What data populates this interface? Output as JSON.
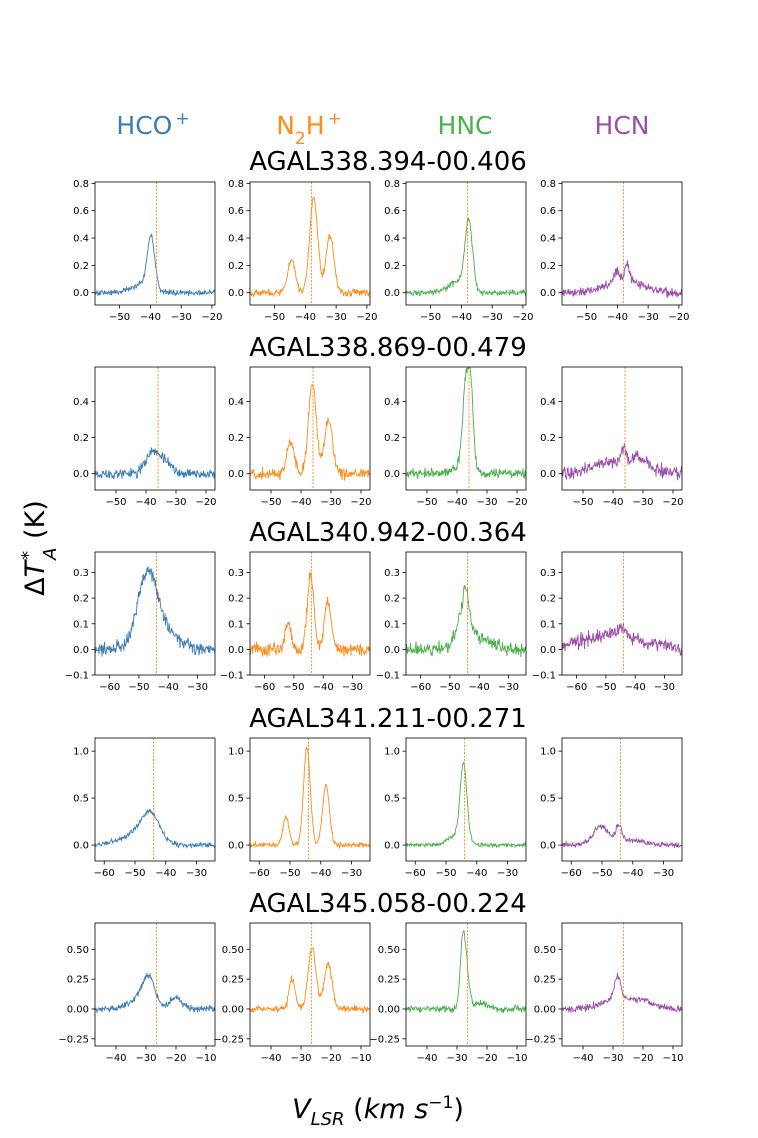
{
  "figure": {
    "column_labels": [
      {
        "parts": [
          {
            "t": "HCO"
          },
          {
            "t": "+",
            "sup": true
          }
        ],
        "color": "#3b7db5"
      },
      {
        "parts": [
          {
            "t": "N"
          },
          {
            "t": "2",
            "sub": true
          },
          {
            "t": "H"
          },
          {
            "t": "+",
            "sup": true
          }
        ],
        "color": "#ff8c1a"
      },
      {
        "parts": [
          {
            "t": "HNC"
          }
        ],
        "color": "#4cb04c"
      },
      {
        "parts": [
          {
            "t": "HCN"
          }
        ],
        "color": "#9b4fa8"
      }
    ],
    "y_label": {
      "prefix": "Δ",
      "var": "T",
      "sup": "*",
      "sub": "A",
      "unit": " (K)"
    },
    "x_label": {
      "var": "V",
      "sub": "LSR",
      "unit_pre": " (",
      "unit_var": "km s",
      "unit_sup": "−1",
      "unit_post": ")"
    }
  },
  "chart_data": [
    {
      "type": "line",
      "source": "AGAL338.394-00.406",
      "xlim": [
        -58,
        -19
      ],
      "ylim": [
        -0.09,
        0.81
      ],
      "xticks": [
        -50,
        -40,
        -30,
        -20
      ],
      "yticks": [
        0.0,
        0.2,
        0.4,
        0.6,
        0.8
      ],
      "ytick_labels": [
        "0.0",
        "0.2",
        "0.4",
        "0.6",
        "0.8"
      ],
      "ytick_rows": [
        0,
        1,
        2,
        3,
        4
      ],
      "vline": -38.0,
      "series": [
        {
          "name": "HCO+",
          "noise": 0.015,
          "components": [
            [
              -39.8,
              1.2,
              0.38
            ],
            [
              -43.0,
              3.5,
              0.06
            ]
          ]
        },
        {
          "name": "N2H+",
          "noise": 0.018,
          "components": [
            [
              -37.3,
              1.3,
              0.7
            ],
            [
              -32.0,
              1.3,
              0.42
            ],
            [
              -44.5,
              1.2,
              0.25
            ]
          ]
        },
        {
          "name": "HNC",
          "noise": 0.015,
          "components": [
            [
              -37.6,
              1.2,
              0.5
            ],
            [
              -41.0,
              3.0,
              0.08
            ]
          ]
        },
        {
          "name": "HCN",
          "noise": 0.025,
          "components": [
            [
              -38.0,
              6.0,
              0.09
            ],
            [
              -36.8,
              0.8,
              0.12
            ],
            [
              -40.3,
              0.8,
              0.08
            ]
          ]
        }
      ]
    },
    {
      "type": "line",
      "source": "AGAL338.869-00.479",
      "xlim": [
        -57,
        -17
      ],
      "ylim": [
        -0.09,
        0.59
      ],
      "xticks": [
        -50,
        -40,
        -30,
        -20
      ],
      "yticks": [
        0.0,
        0.2,
        0.4
      ],
      "ytick_labels": [
        "0.0",
        "0.2",
        "0.4"
      ],
      "ytick_rows": [
        0,
        1,
        2
      ],
      "vline": -36.0,
      "series": [
        {
          "name": "HCO+",
          "noise": 0.02,
          "components": [
            [
              -37.5,
              2.5,
              0.12
            ],
            [
              -33.0,
              1.5,
              0.05
            ]
          ]
        },
        {
          "name": "N2H+",
          "noise": 0.02,
          "components": [
            [
              -36.2,
              1.3,
              0.5
            ],
            [
              -30.8,
              1.3,
              0.3
            ],
            [
              -43.5,
              1.2,
              0.18
            ]
          ]
        },
        {
          "name": "HNC",
          "noise": 0.02,
          "components": [
            [
              -37.3,
              0.9,
              0.4
            ],
            [
              -35.5,
              0.9,
              0.48
            ],
            [
              -38.0,
              3.0,
              0.05
            ]
          ]
        },
        {
          "name": "HCN",
          "noise": 0.025,
          "components": [
            [
              -38.0,
              8.0,
              0.07
            ],
            [
              -36.5,
              0.8,
              0.08
            ],
            [
              -31.0,
              2.0,
              0.05
            ]
          ]
        }
      ]
    },
    {
      "type": "line",
      "source": "AGAL340.942-00.364",
      "xlim": [
        -65,
        -24
      ],
      "ylim": [
        -0.1,
        0.38
      ],
      "xticks": [
        -60,
        -50,
        -40,
        -30
      ],
      "yticks": [
        -0.1,
        0.0,
        0.1,
        0.2,
        0.3
      ],
      "ytick_labels": [
        "−0.1",
        "0.0",
        "0.1",
        "0.2",
        "0.3"
      ],
      "ytick_rows": [
        0,
        1,
        2,
        3,
        4
      ],
      "vline": -44.0,
      "series": [
        {
          "name": "HCO+",
          "noise": 0.018,
          "components": [
            [
              -47.0,
              3.5,
              0.29
            ],
            [
              -40.0,
              5.0,
              0.05
            ]
          ]
        },
        {
          "name": "N2H+",
          "noise": 0.018,
          "components": [
            [
              -44.3,
              1.1,
              0.3
            ],
            [
              -38.5,
              1.1,
              0.19
            ],
            [
              -52.0,
              1.0,
              0.1
            ]
          ]
        },
        {
          "name": "HNC",
          "noise": 0.018,
          "components": [
            [
              -45.2,
              2.3,
              0.14
            ],
            [
              -44.6,
              0.8,
              0.08
            ],
            [
              -40.0,
              5.0,
              0.04
            ]
          ]
        },
        {
          "name": "HCN",
          "noise": 0.02,
          "components": [
            [
              -48.0,
              10.0,
              0.06
            ],
            [
              -44.5,
              1.0,
              0.03
            ]
          ]
        }
      ]
    },
    {
      "type": "line",
      "source": "AGAL341.211-00.271",
      "xlim": [
        -63,
        -24
      ],
      "ylim": [
        -0.17,
        1.14
      ],
      "xticks": [
        -60,
        -50,
        -40,
        -30
      ],
      "yticks": [
        0.0,
        0.5,
        1.0
      ],
      "ytick_labels": [
        "0.0",
        "0.5",
        "1.0"
      ],
      "ytick_rows": [
        0,
        1,
        2
      ],
      "vline": -44.0,
      "series": [
        {
          "name": "HCO+",
          "noise": 0.018,
          "components": [
            [
              -45.0,
              3.0,
              0.3
            ],
            [
              -50.0,
              5.0,
              0.1
            ]
          ]
        },
        {
          "name": "N2H+",
          "noise": 0.018,
          "components": [
            [
              -44.5,
              1.1,
              1.03
            ],
            [
              -38.3,
              1.1,
              0.64
            ],
            [
              -51.3,
              1.0,
              0.3
            ]
          ]
        },
        {
          "name": "HNC",
          "noise": 0.015,
          "components": [
            [
              -44.3,
              1.1,
              0.8
            ],
            [
              -46.5,
              3.0,
              0.1
            ]
          ]
        },
        {
          "name": "HCN",
          "noise": 0.02,
          "components": [
            [
              -50.5,
              2.5,
              0.2
            ],
            [
              -44.5,
              1.0,
              0.18
            ],
            [
              -40.0,
              4.0,
              0.05
            ]
          ]
        }
      ]
    },
    {
      "type": "line",
      "source": "AGAL345.058-00.224",
      "xlim": [
        -47,
        -7
      ],
      "ylim": [
        -0.31,
        0.72
      ],
      "xticks": [
        -40,
        -30,
        -20,
        -10
      ],
      "yticks": [
        -0.25,
        0.0,
        0.25,
        0.5
      ],
      "ytick_labels": [
        "−0.25",
        "0.00",
        "0.25",
        "0.50"
      ],
      "ytick_rows": [
        0,
        1,
        2,
        3
      ],
      "vline": -26.5,
      "series": [
        {
          "name": "HCO+",
          "noise": 0.02,
          "components": [
            [
              -29.0,
              2.0,
              0.25
            ],
            [
              -20.0,
              2.0,
              0.1
            ],
            [
              -33.0,
              3.0,
              0.08
            ]
          ]
        },
        {
          "name": "N2H+",
          "noise": 0.02,
          "components": [
            [
              -26.3,
              1.3,
              0.52
            ],
            [
              -21.0,
              1.3,
              0.38
            ],
            [
              -33.0,
              1.0,
              0.25
            ]
          ]
        },
        {
          "name": "HNC",
          "noise": 0.018,
          "components": [
            [
              -28.0,
              0.9,
              0.6
            ],
            [
              -26.5,
              0.9,
              0.2
            ],
            [
              -22.0,
              2.0,
              0.05
            ]
          ]
        },
        {
          "name": "HCN",
          "noise": 0.02,
          "components": [
            [
              -28.5,
              1.2,
              0.2
            ],
            [
              -22.0,
              5.0,
              0.08
            ],
            [
              -32.0,
              4.0,
              0.05
            ]
          ]
        }
      ]
    }
  ]
}
